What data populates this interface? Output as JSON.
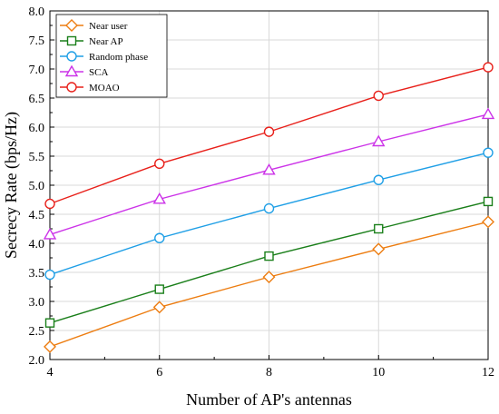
{
  "chart_data": {
    "type": "line",
    "title": "",
    "xlabel": "Number of AP's antennas",
    "ylabel": "Secrecy Rate (bps/Hz)",
    "x": [
      4,
      6,
      8,
      10,
      12
    ],
    "xlim": [
      4,
      12
    ],
    "ylim": [
      2.0,
      8.0
    ],
    "xticks": [
      4,
      6,
      8,
      10,
      12
    ],
    "yticks": [
      2.0,
      2.5,
      3.0,
      3.5,
      4.0,
      4.5,
      5.0,
      5.5,
      6.0,
      6.5,
      7.0,
      7.5,
      8.0
    ],
    "xtick_labels": [
      "4",
      "6",
      "8",
      "10",
      "12"
    ],
    "ytick_labels": [
      "2.0",
      "2.5",
      "3.0",
      "3.5",
      "4.0",
      "4.5",
      "5.0",
      "5.5",
      "6.0",
      "6.5",
      "7.0",
      "7.5",
      "8.0"
    ],
    "grid": true,
    "legend_position": "top-left",
    "series": [
      {
        "name": "Near user",
        "values": [
          2.22,
          2.9,
          3.42,
          3.9,
          4.37
        ],
        "color": "#ED7D11",
        "marker": "diamond"
      },
      {
        "name": "Near AP",
        "values": [
          2.63,
          3.21,
          3.78,
          4.25,
          4.72
        ],
        "color": "#1A7F1A",
        "marker": "square"
      },
      {
        "name": "Random phase",
        "values": [
          3.46,
          4.09,
          4.6,
          5.09,
          5.56
        ],
        "color": "#1F9FE6",
        "marker": "circle"
      },
      {
        "name": "SCA",
        "values": [
          4.15,
          4.76,
          5.26,
          5.75,
          6.22
        ],
        "color": "#CC33E8",
        "marker": "triangle"
      },
      {
        "name": "MOAO",
        "values": [
          4.68,
          5.37,
          5.92,
          6.54,
          7.03
        ],
        "color": "#E8201A",
        "marker": "circle"
      }
    ]
  }
}
